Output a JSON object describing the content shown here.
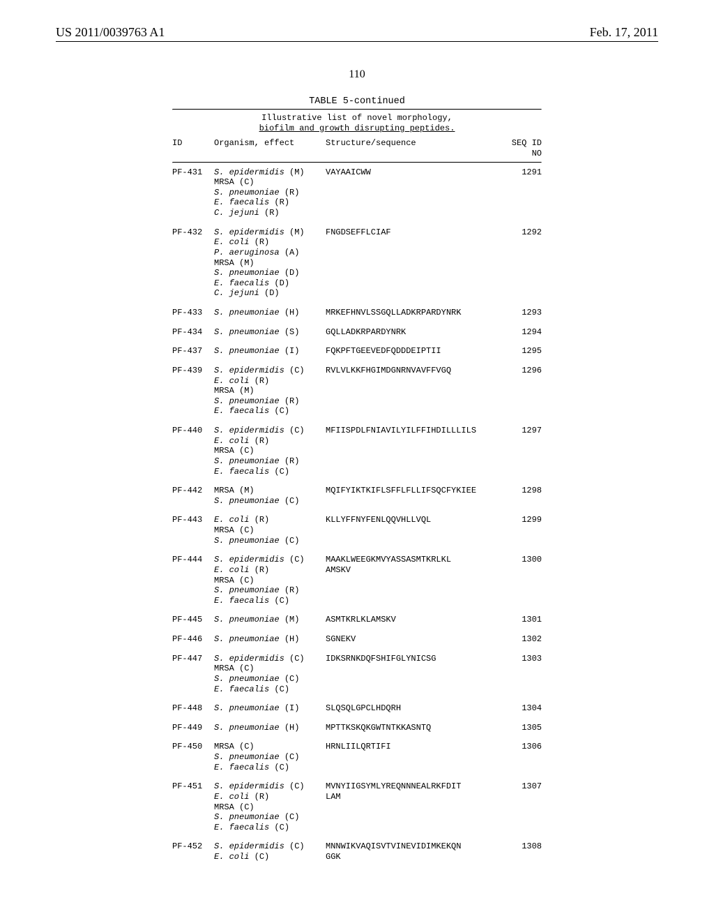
{
  "header": {
    "pub_number": "US 2011/0039763 A1",
    "pub_date": "Feb. 17, 2011"
  },
  "page_number": "110",
  "table": {
    "title": "TABLE 5-continued",
    "caption_l1": "Illustrative list of novel morphology,",
    "caption_l2": "biofilm and growth disrupting peptides.",
    "col_id": "ID",
    "col_org": "Organism, effect",
    "col_seq": "Structure/sequence",
    "col_seqid_l1": "SEQ ID",
    "col_seqid_l2": "NO",
    "rows": [
      {
        "id": "PF-431",
        "organisms": [
          {
            "name": "S. epidermidis",
            "effect": "(M)"
          },
          {
            "name": "MRSA",
            "effect": "(C)",
            "plain": true
          },
          {
            "name": "S. pneumoniae",
            "effect": "(R)"
          },
          {
            "name": "E. faecalis",
            "effect": "(R)"
          },
          {
            "name": "C. jejuni",
            "effect": "(R)"
          }
        ],
        "sequence": "VAYAAICWW",
        "seqid": "1291"
      },
      {
        "id": "PF-432",
        "organisms": [
          {
            "name": "S. epidermidis",
            "effect": "(M)"
          },
          {
            "name": "E. coli",
            "effect": "(R)"
          },
          {
            "name": "P. aeruginosa",
            "effect": "(A)"
          },
          {
            "name": "MRSA",
            "effect": "(M)",
            "plain": true
          },
          {
            "name": "S. pneumoniae",
            "effect": "(D)"
          },
          {
            "name": "E. faecalis",
            "effect": "(D)"
          },
          {
            "name": "C. jejuni",
            "effect": "(D)"
          }
        ],
        "sequence": "FNGDSEFFLCIAF",
        "seqid": "1292"
      },
      {
        "id": "PF-433",
        "organisms": [
          {
            "name": "S. pneumoniae",
            "effect": "(H)"
          }
        ],
        "sequence": "MRKEFHNVLSSGQLLADKRPARDYNRK",
        "seqid": "1293"
      },
      {
        "id": "PF-434",
        "organisms": [
          {
            "name": "S. pneumoniae",
            "effect": "(S)"
          }
        ],
        "sequence": "GQLLADKRPARDYNRK",
        "seqid": "1294"
      },
      {
        "id": "PF-437",
        "organisms": [
          {
            "name": "S. pneumoniae",
            "effect": "(I)"
          }
        ],
        "sequence": "FQKPFTGEEVEDFQDDDEIPTII",
        "seqid": "1295"
      },
      {
        "id": "PF-439",
        "organisms": [
          {
            "name": "S. epidermidis",
            "effect": "(C)"
          },
          {
            "name": "E. coli",
            "effect": "(R)"
          },
          {
            "name": "MRSA",
            "effect": "(M)",
            "plain": true
          },
          {
            "name": "S. pneumoniae",
            "effect": "(R)"
          },
          {
            "name": "E. faecalis",
            "effect": "(C)"
          }
        ],
        "sequence": "RVLVLKKFHGIMDGNRNVAVFFVGQ",
        "seqid": "1296"
      },
      {
        "id": "PF-440",
        "organisms": [
          {
            "name": "S. epidermidis",
            "effect": "(C)"
          },
          {
            "name": "E. coli",
            "effect": "(R)"
          },
          {
            "name": "MRSA",
            "effect": "(C)",
            "plain": true
          },
          {
            "name": "S. pneumoniae",
            "effect": "(R)"
          },
          {
            "name": "E. faecalis",
            "effect": "(C)"
          }
        ],
        "sequence": "MFIISPDLFNIAVILYILFFIHDILLLILS",
        "seqid": "1297"
      },
      {
        "id": "PF-442",
        "organisms": [
          {
            "name": "MRSA",
            "effect": "(M)",
            "plain": true
          },
          {
            "name": "S. pneumoniae",
            "effect": "(C)"
          }
        ],
        "sequence": "MQIFYIKTKIFLSFFLFLLIFSQCFYKIEE",
        "seqid": "1298"
      },
      {
        "id": "PF-443",
        "organisms": [
          {
            "name": "E. coli",
            "effect": "(R)"
          },
          {
            "name": "MRSA",
            "effect": "(C)",
            "plain": true
          },
          {
            "name": "S. pneumoniae",
            "effect": "(C)"
          }
        ],
        "sequence": "KLLYFFNYFENLQQVHLLVQL",
        "seqid": "1299"
      },
      {
        "id": "PF-444",
        "organisms": [
          {
            "name": "S. epidermidis",
            "effect": "(C)"
          },
          {
            "name": "E. coli",
            "effect": "(R)"
          },
          {
            "name": "MRSA",
            "effect": "(C)",
            "plain": true
          },
          {
            "name": "S. pneumoniae",
            "effect": "(R)"
          },
          {
            "name": "E. faecalis",
            "effect": "(C)"
          }
        ],
        "sequence": "MAAKLWEEGKMVYASSASMTKRLKL",
        "sequence_l2": "AMSKV",
        "seqid": "1300"
      },
      {
        "id": "PF-445",
        "organisms": [
          {
            "name": "S. pneumoniae",
            "effect": "(M)"
          }
        ],
        "sequence": "ASMTKRLKLAMSKV",
        "seqid": "1301"
      },
      {
        "id": "PF-446",
        "organisms": [
          {
            "name": "S. pneumoniae",
            "effect": "(H)"
          }
        ],
        "sequence": "SGNEKV",
        "seqid": "1302"
      },
      {
        "id": "PF-447",
        "organisms": [
          {
            "name": "S. epidermidis",
            "effect": "(C)"
          },
          {
            "name": "MRSA",
            "effect": "(C)",
            "plain": true
          },
          {
            "name": "S. pneumoniae",
            "effect": "(C)"
          },
          {
            "name": "E. faecalis",
            "effect": "(C)"
          }
        ],
        "sequence": "IDKSRNKDQFSHIFGLYNICSG",
        "seqid": "1303"
      },
      {
        "id": "PF-448",
        "organisms": [
          {
            "name": "S. pneumoniae",
            "effect": "(I)"
          }
        ],
        "sequence": "SLQSQLGPCLHDQRH",
        "seqid": "1304"
      },
      {
        "id": "PF-449",
        "organisms": [
          {
            "name": "S. pneumoniae",
            "effect": "(H)"
          }
        ],
        "sequence": "MPTTKSKQKGWTNTKKASNTQ",
        "seqid": "1305"
      },
      {
        "id": "PF-450",
        "organisms": [
          {
            "name": "MRSA",
            "effect": "(C)",
            "plain": true
          },
          {
            "name": "S. pneumoniae",
            "effect": "(C)"
          },
          {
            "name": "E. faecalis",
            "effect": "(C)"
          }
        ],
        "sequence": "HRNLIILQRTIFI",
        "seqid": "1306"
      },
      {
        "id": "PF-451",
        "organisms": [
          {
            "name": "S. epidermidis",
            "effect": "(C)"
          },
          {
            "name": "E. coli",
            "effect": "(R)"
          },
          {
            "name": "MRSA",
            "effect": "(C)",
            "plain": true
          },
          {
            "name": "S. pneumoniae",
            "effect": "(C)"
          },
          {
            "name": "E. faecalis",
            "effect": "(C)"
          }
        ],
        "sequence": "MVNYIIGSYMLYREQNNNEALRKFDIT",
        "sequence_l2": "LAM",
        "seqid": "1307"
      },
      {
        "id": "PF-452",
        "organisms": [
          {
            "name": "S. epidermidis",
            "effect": "(C)"
          },
          {
            "name": "E. coli",
            "effect": "(C)"
          }
        ],
        "sequence": "MNNWIKVAQISVTVINEVIDIMKEKQN",
        "sequence_l2": "GGK",
        "seqid": "1308"
      }
    ]
  }
}
